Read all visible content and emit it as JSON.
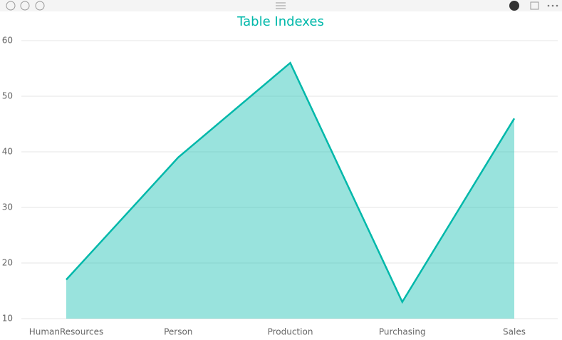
{
  "chart_data": {
    "type": "area",
    "title": "Table Indexes",
    "categories": [
      "HumanResources",
      "Person",
      "Production",
      "Purchasing",
      "Sales"
    ],
    "values": [
      17,
      39,
      56,
      13,
      46
    ],
    "color": "#01b8aa",
    "ylim": [
      10,
      60
    ],
    "yticks": [
      10,
      20,
      30,
      40,
      50,
      60
    ],
    "grid": true
  }
}
